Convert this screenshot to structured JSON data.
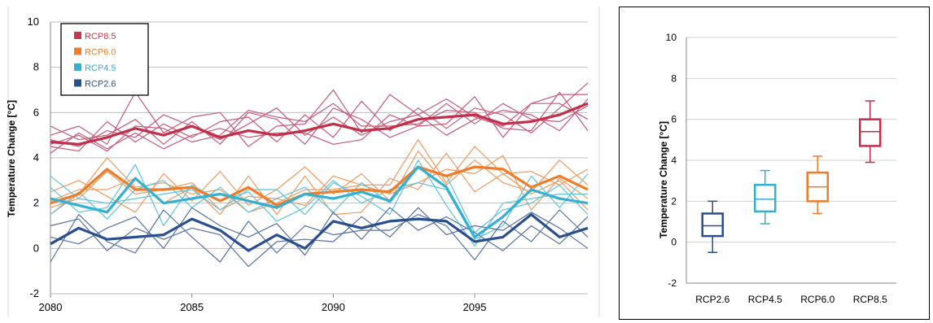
{
  "chart_data": [
    {
      "type": "line",
      "ylabel": "Temperature Change [°C]",
      "xlim": [
        2080,
        2099
      ],
      "ylim": [
        -2,
        10
      ],
      "xticks": [
        2080,
        2085,
        2090,
        2095
      ],
      "yticks": [
        -2,
        0,
        2,
        4,
        6,
        8,
        10
      ],
      "grid": "horizontal",
      "legend_position": "top-left",
      "legend": [
        {
          "label": "RCP8.5",
          "color": "#c8374d"
        },
        {
          "label": "RCP6.0",
          "color": "#ee7d2a"
        },
        {
          "label": "RCP4.5",
          "color": "#35b0d0"
        },
        {
          "label": "RCP2.6",
          "color": "#2a4f8e"
        }
      ],
      "x": [
        2080,
        2081,
        2082,
        2083,
        2084,
        2085,
        2086,
        2087,
        2088,
        2089,
        2090,
        2091,
        2092,
        2093,
        2094,
        2095,
        2096,
        2097,
        2098,
        2099
      ],
      "series": [
        {
          "group": "RCP8.5",
          "mean": true,
          "color": "#c0304a",
          "values": [
            4.7,
            4.6,
            4.9,
            5.3,
            5.0,
            5.4,
            4.9,
            5.2,
            5.0,
            5.2,
            5.5,
            5.2,
            5.3,
            5.7,
            5.8,
            5.9,
            5.5,
            5.6,
            5.9,
            6.4
          ]
        },
        {
          "group": "RCP8.5",
          "color": "#c75a7a",
          "values": [
            5.0,
            5.4,
            4.6,
            6.9,
            5.1,
            5.8,
            6.0,
            4.5,
            5.4,
            5.5,
            7.0,
            5.1,
            6.8,
            5.9,
            6.6,
            5.8,
            5.4,
            6.4,
            6.8,
            6.8
          ]
        },
        {
          "group": "RCP8.5",
          "color": "#c75a7a",
          "values": [
            4.5,
            4.3,
            5.6,
            4.7,
            5.5,
            4.9,
            5.6,
            5.8,
            4.7,
            5.9,
            4.9,
            6.5,
            5.2,
            6.2,
            5.3,
            6.2,
            5.9,
            5.1,
            6.2,
            7.3
          ]
        },
        {
          "group": "RCP8.5",
          "color": "#c75a7a",
          "values": [
            5.4,
            4.8,
            5.0,
            5.7,
            4.6,
            5.6,
            4.6,
            6.0,
            5.7,
            4.6,
            6.2,
            5.7,
            4.9,
            5.4,
            6.4,
            5.5,
            6.4,
            5.7,
            5.6,
            6.3
          ]
        },
        {
          "group": "RCP8.5",
          "color": "#c75a7a",
          "values": [
            4.2,
            5.1,
            4.4,
            5.1,
            4.4,
            5.0,
            5.3,
            4.9,
            5.1,
            5.1,
            4.6,
            4.8,
            5.9,
            5.4,
            5.5,
            6.7,
            4.9,
            6.4,
            6.4,
            5.7
          ]
        },
        {
          "group": "RCP8.5",
          "color": "#c75a7a",
          "values": [
            4.8,
            4.5,
            5.2,
            4.9,
            5.9,
            5.4,
            4.8,
            5.5,
            6.2,
            5.0,
            5.8,
            5.0,
            5.6,
            5.9,
            5.0,
            5.7,
            6.1,
            5.9,
            5.2,
            6.6
          ]
        },
        {
          "group": "RCP8.5",
          "color": "#c75a7a",
          "values": [
            4.6,
            5.0,
            4.3,
            5.4,
            5.3,
            4.7,
            5.0,
            6.1,
            5.8,
            5.6,
            6.4,
            5.4,
            5.4,
            5.5,
            6.1,
            6.0,
            5.3,
            5.2,
            6.9,
            5.2
          ]
        },
        {
          "group": "RCP6.0",
          "mean": true,
          "color": "#ee7d2a",
          "values": [
            2.0,
            2.4,
            3.5,
            2.6,
            2.6,
            2.7,
            2.1,
            2.7,
            1.9,
            2.4,
            2.5,
            2.6,
            2.5,
            3.6,
            3.2,
            3.6,
            3.5,
            2.7,
            3.2,
            2.6
          ]
        },
        {
          "group": "RCP6.0",
          "color": "#ef9a62",
          "values": [
            2.5,
            3.0,
            2.3,
            1.6,
            3.3,
            2.1,
            3.4,
            1.9,
            2.6,
            3.6,
            2.4,
            3.3,
            2.1,
            4.3,
            2.8,
            3.9,
            2.9,
            2.5,
            3.9,
            2.8
          ]
        },
        {
          "group": "RCP6.0",
          "color": "#ef9a62",
          "values": [
            1.8,
            2.2,
            3.4,
            2.4,
            2.6,
            2.9,
            1.7,
            2.3,
            2.2,
            1.9,
            3.2,
            2.8,
            2.4,
            2.9,
            3.5,
            3.3,
            4.1,
            1.7,
            3.1,
            2.2
          ]
        },
        {
          "group": "RCP6.0",
          "color": "#ef9a62",
          "values": [
            2.1,
            2.6,
            2.6,
            3.1,
            2.0,
            2.7,
            1.5,
            3.2,
            1.5,
            3.2,
            1.5,
            1.6,
            3.1,
            2.6,
            4.2,
            2.5,
            3.3,
            3.4,
            2.8,
            3.5
          ]
        },
        {
          "group": "RCP6.0",
          "color": "#ef9a62",
          "values": [
            1.5,
            2.4,
            4.0,
            2.7,
            2.9,
            2.4,
            2.6,
            1.6,
            2.0,
            2.6,
            2.6,
            2.8,
            2.8,
            4.8,
            2.9,
            4.5,
            3.3,
            2.4,
            3.0,
            1.7
          ]
        },
        {
          "group": "RCP4.5",
          "mean": true,
          "color": "#35b0d0",
          "values": [
            2.2,
            1.9,
            1.6,
            3.1,
            2.0,
            2.2,
            2.4,
            2.1,
            1.8,
            2.4,
            2.2,
            2.5,
            2.1,
            3.6,
            2.7,
            0.5,
            1.4,
            2.6,
            2.2,
            2.0
          ]
        },
        {
          "group": "RCP4.5",
          "color": "#5fc4de",
          "values": [
            2.7,
            1.6,
            1.8,
            3.7,
            1.0,
            2.8,
            2.1,
            2.5,
            1.2,
            1.8,
            3.0,
            2.0,
            2.6,
            2.9,
            2.6,
            0.4,
            1.0,
            3.2,
            1.8,
            3.3
          ]
        },
        {
          "group": "RCP4.5",
          "color": "#5fc4de",
          "values": [
            1.5,
            2.5,
            1.3,
            2.6,
            3.0,
            1.8,
            2.7,
            1.6,
            2.2,
            2.7,
            1.6,
            2.9,
            2.0,
            3.6,
            3.2,
            0.7,
            1.7,
            2.0,
            2.8,
            1.5
          ]
        },
        {
          "group": "RCP4.5",
          "color": "#5fc4de",
          "values": [
            3.2,
            2.2,
            2.0,
            2.2,
            2.4,
            2.6,
            1.7,
            2.6,
            2.6,
            1.5,
            2.9,
            2.3,
            1.5,
            3.9,
            1.9,
            0.1,
            2.0,
            2.2,
            2.4,
            2.4
          ]
        },
        {
          "group": "RCP2.6",
          "mean": true,
          "color": "#2a4f8e",
          "values": [
            0.2,
            0.9,
            0.4,
            0.5,
            0.6,
            1.3,
            0.8,
            -0.1,
            0.6,
            0.0,
            1.2,
            0.9,
            1.2,
            1.3,
            1.2,
            0.3,
            0.5,
            1.5,
            0.5,
            0.9
          ]
        },
        {
          "group": "RCP2.6",
          "color": "#5671a4",
          "values": [
            -0.6,
            1.5,
            0.3,
            -0.2,
            1.7,
            0.5,
            -0.6,
            1.2,
            -0.2,
            1.0,
            0.6,
            0.8,
            0.8,
            1.5,
            1.0,
            -0.5,
            1.2,
            0.3,
            1.7,
            0.5
          ]
        },
        {
          "group": "RCP2.6",
          "color": "#5671a4",
          "values": [
            0.5,
            0.2,
            0.9,
            1.4,
            0.0,
            1.8,
            1.0,
            0.5,
            1.1,
            -0.3,
            1.6,
            0.4,
            1.8,
            0.8,
            1.4,
            0.7,
            -0.1,
            1.0,
            0.2,
            1.4
          ]
        },
        {
          "group": "RCP2.6",
          "color": "#5671a4",
          "values": [
            1.0,
            1.3,
            -0.1,
            0.9,
            0.4,
            0.9,
            0.6,
            -0.8,
            0.3,
            0.4,
            0.3,
            1.4,
            0.5,
            1.8,
            0.6,
            1.0,
            0.8,
            1.6,
            0.9,
            0.0
          ]
        }
      ]
    },
    {
      "type": "box",
      "ylabel": "Temperature Change [°C]",
      "ylim": [
        -2,
        10
      ],
      "yticks": [
        -2,
        0,
        2,
        4,
        6,
        8,
        10
      ],
      "grid": "horizontal",
      "categories": [
        "RCP2.6",
        "RCP4.5",
        "RCP6.0",
        "RCP8.5"
      ],
      "colors": [
        "#2a4f8e",
        "#35b0d0",
        "#ee7d2a",
        "#c0304a"
      ],
      "boxes": [
        {
          "min": -0.5,
          "q1": 0.3,
          "median": 0.8,
          "q3": 1.4,
          "max": 2.0
        },
        {
          "min": 0.9,
          "q1": 1.5,
          "median": 2.1,
          "q3": 2.8,
          "max": 3.5
        },
        {
          "min": 1.4,
          "q1": 2.0,
          "median": 2.7,
          "q3": 3.4,
          "max": 4.2
        },
        {
          "min": 3.9,
          "q1": 4.7,
          "median": 5.4,
          "q3": 6.0,
          "max": 6.9
        }
      ]
    }
  ]
}
